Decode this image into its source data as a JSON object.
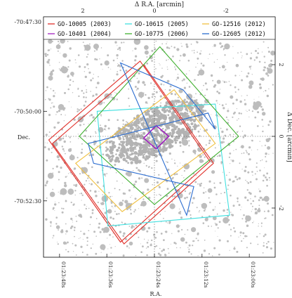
{
  "chart_data": {
    "type": "scatter",
    "top_axis": {
      "label": "Δ R.A. [arcmin]",
      "ticks": [
        {
          "value": 2,
          "label": "2"
        },
        {
          "value": 0,
          "label": "0"
        },
        {
          "value": -2,
          "label": "-2"
        }
      ],
      "range": [
        3.5,
        -3.5
      ]
    },
    "right_axis": {
      "label": "Δ Dec. [arcmin]",
      "ticks": [
        {
          "value": 2,
          "label": "2"
        },
        {
          "value": 0,
          "label": "0"
        },
        {
          "value": -2,
          "label": "-2"
        }
      ],
      "range": [
        -4.2,
        3.8
      ]
    },
    "left_axis": {
      "label": "Dec.",
      "ticks": [
        {
          "value": 3.2,
          "label": "-70:47:30"
        },
        {
          "value": 0.7,
          "label": "-70:50:00"
        },
        {
          "value": -1.8,
          "label": "-70:52:30"
        }
      ]
    },
    "bottom_axis": {
      "label": "R.A.",
      "ticks": [
        {
          "value": 2.65,
          "label": "01:23:48s"
        },
        {
          "value": 1.33,
          "label": "01:23:36s"
        },
        {
          "value": 0.0,
          "label": "01:23:24s"
        },
        {
          "value": -1.33,
          "label": "01:23:12s"
        },
        {
          "value": -2.65,
          "label": "01:23:00s"
        }
      ]
    },
    "legend_position": "top",
    "series": [
      {
        "name": "GO-10005 (2003)",
        "color": "#e0302a",
        "polygons": [
          [
            [
              0.3,
              2.0
            ],
            [
              2.85,
              -0.2
            ],
            [
              0.85,
              -3.0
            ],
            [
              -1.65,
              -0.75
            ]
          ],
          [
            [
              0.4,
              2.1
            ],
            [
              2.95,
              -0.1
            ],
            [
              0.95,
              -2.95
            ],
            [
              -1.55,
              -0.7
            ]
          ]
        ]
      },
      {
        "name": "GO-10401 (2004)",
        "color": "#a020c0",
        "polygons": [
          [
            [
              -0.05,
              0.3
            ],
            [
              0.3,
              -0.05
            ],
            [
              -0.05,
              -0.35
            ],
            [
              -0.4,
              0.0
            ]
          ]
        ]
      },
      {
        "name": "GO-10615 (2005)",
        "color": "#40e0e0",
        "polygons": [
          [
            [
              -1.7,
              0.9
            ],
            [
              1.6,
              0.7
            ],
            [
              1.3,
              -2.5
            ],
            [
              -2.1,
              -2.2
            ]
          ]
        ]
      },
      {
        "name": "GO-10775 (2006)",
        "color": "#40b030",
        "polygons": [
          [
            [
              -0.15,
              2.5
            ],
            [
              2.1,
              0.0
            ],
            [
              0.0,
              -1.9
            ],
            [
              -2.35,
              0.0
            ]
          ]
        ]
      },
      {
        "name": "GO-12516 (2012)",
        "color": "#f0c040",
        "polygons": [
          [
            [
              -0.55,
              1.3
            ],
            [
              2.2,
              -0.75
            ],
            [
              0.9,
              -2.1
            ],
            [
              -1.7,
              -0.2
            ]
          ]
        ]
      },
      {
        "name": "GO-12605 (2012)",
        "color": "#2a6cd0",
        "polygons": [
          [
            [
              -0.8,
              1.3
            ],
            [
              0.95,
              2.05
            ],
            [
              -0.9,
              -2.2
            ],
            [
              -1.1,
              -1.4
            ],
            [
              1.7,
              -0.75
            ],
            [
              1.85,
              -0.2
            ],
            [
              -1.5,
              0.65
            ],
            [
              -1.7,
              0.2
            ]
          ]
        ]
      }
    ]
  }
}
